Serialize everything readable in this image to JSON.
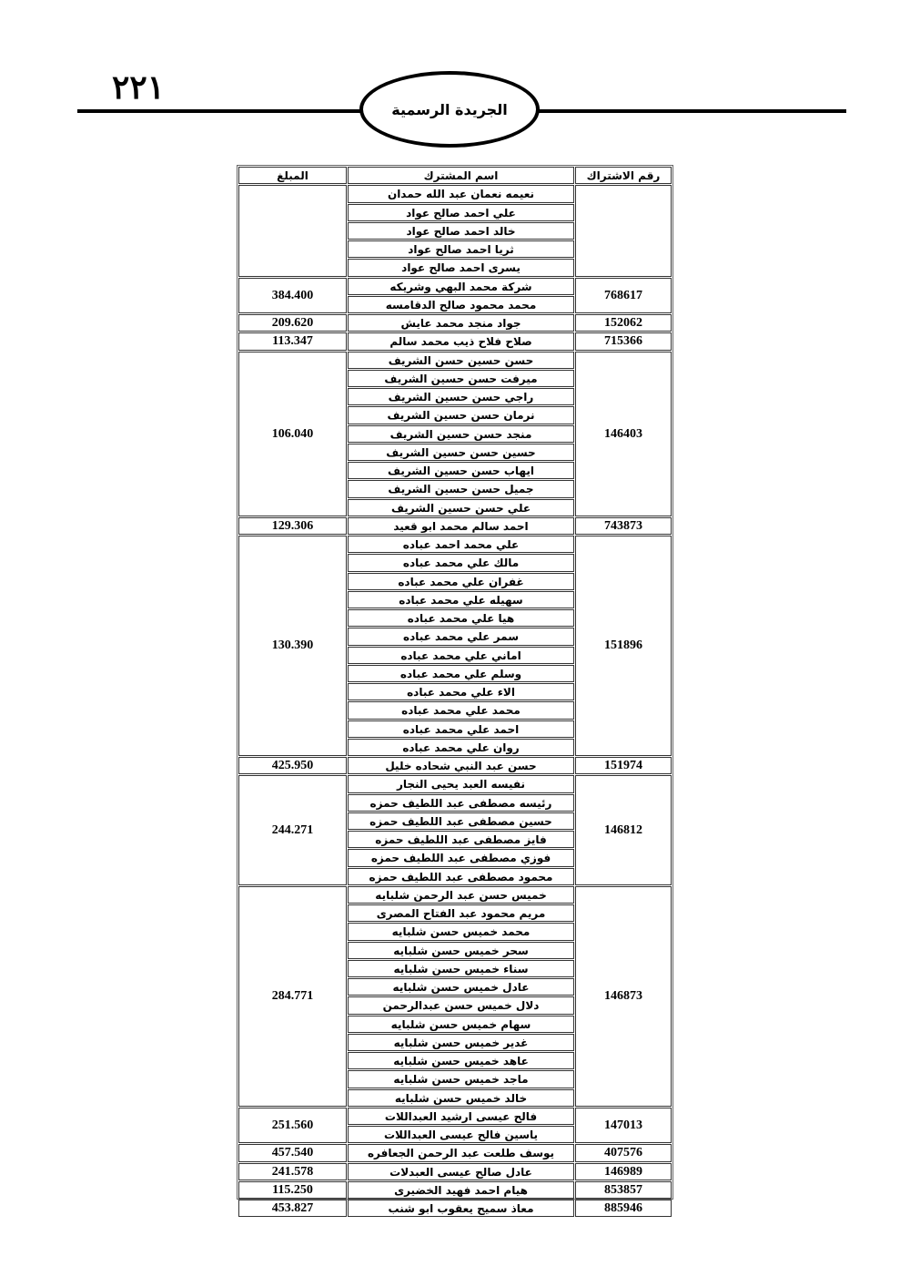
{
  "header": {
    "page_number": "٢٢١",
    "publication_title": "الجريدة الرسمية"
  },
  "table": {
    "columns": {
      "account": "رقم الاشتراك",
      "name": "اسم المشترك",
      "amount": "المبلغ"
    },
    "groups": [
      {
        "account": "",
        "amount": "",
        "names": [
          "نعيمه نعمان عبد الله حمدان",
          "علي احمد صالح عواد",
          "خالد احمد صالح عواد",
          "ثريا احمد صالح عواد",
          "يسرى احمد صالح عواد"
        ]
      },
      {
        "account": "768617",
        "amount": "384.400",
        "names": [
          "شركة محمد البهي وشريكه",
          "محمد محمود صالح الدقامسه"
        ]
      },
      {
        "account": "152062",
        "amount": "209.620",
        "names": [
          "جواد منجد محمد عايش"
        ]
      },
      {
        "account": "715366",
        "amount": "113.347",
        "names": [
          "صلاح فلاح ذيب محمد سالم"
        ]
      },
      {
        "account": "146403",
        "amount": "106.040",
        "names": [
          "حسن حسين حسن الشريف",
          "ميرفت حسن حسين الشريف",
          "راجي حسن حسين الشريف",
          "نرمان حسن حسين الشريف",
          "منجد حسن حسين الشريف",
          "حسين حسن حسين الشريف",
          "ايهاب حسن حسين الشريف",
          "جميل حسن حسين الشريف",
          "علي حسن حسين الشريف"
        ]
      },
      {
        "account": "743873",
        "amount": "129.306",
        "names": [
          "احمد سالم محمد ابو قعيد"
        ]
      },
      {
        "account": "151896",
        "amount": "130.390",
        "names": [
          "علي محمد احمد عباده",
          "مالك علي محمد عباده",
          "غفران علي محمد عباده",
          "سهيله علي محمد عباده",
          "هيا علي محمد عباده",
          "سمر علي محمد عباده",
          "اماني علي محمد عباده",
          "وسلم علي محمد عباده",
          "الاء علي محمد عباده",
          "محمد علي محمد عباده",
          "احمد علي محمد عباده",
          "روان علي محمد عباده"
        ]
      },
      {
        "account": "151974",
        "amount": "425.950",
        "names": [
          "حسن عبد النبي شحاده خليل"
        ]
      },
      {
        "account": "146812",
        "amount": "244.271",
        "names": [
          "نفيسه العبد يحيى النجار",
          "رئيسه مصطفى عبد اللطيف حمزه",
          "حسين مصطفى عبد اللطيف حمزه",
          "فايز مصطفى عبد اللطيف حمزه",
          "فوزي مصطفى عبد اللطيف حمزه",
          "محمود مصطفى عبد اللطيف حمزه"
        ]
      },
      {
        "account": "146873",
        "amount": "284.771",
        "names": [
          "خميس حسن عبد الرحمن شلبايه",
          "مريم محمود عبد الفتاح المصرى",
          "محمد خميس حسن شلبايه",
          "سحر خميس حسن شلبايه",
          "سناء خميس حسن شلبايه",
          "عادل خميس حسن شلبايه",
          "دلال خميس حسن عبدالرحمن",
          "سهام خميس حسن شلبايه",
          "غدير خميس حسن شلبايه",
          "عاهد خميس حسن شلبايه",
          "ماجد خميس حسن شلبايه",
          "خالد خميس حسن شلبايه"
        ]
      },
      {
        "account": "147013",
        "amount": "251.560",
        "names": [
          "فالح عيسى ارشيد العبداللات",
          "ياسين فالح عيسى العبداللات"
        ]
      },
      {
        "account": "407576",
        "amount": "457.540",
        "names": [
          "يوسف طلعت عبد الرحمن الجعافره"
        ]
      },
      {
        "account": "146989",
        "amount": "241.578",
        "names": [
          "عادل صالح عيسى العبدلات"
        ]
      },
      {
        "account": "853857",
        "amount": "115.250",
        "names": [
          "هيام احمد فهيد الخضيرى"
        ]
      },
      {
        "account": "885946",
        "amount": "453.827",
        "names": [
          "معاذ سميح يعقوب ابو شنب"
        ]
      }
    ]
  }
}
